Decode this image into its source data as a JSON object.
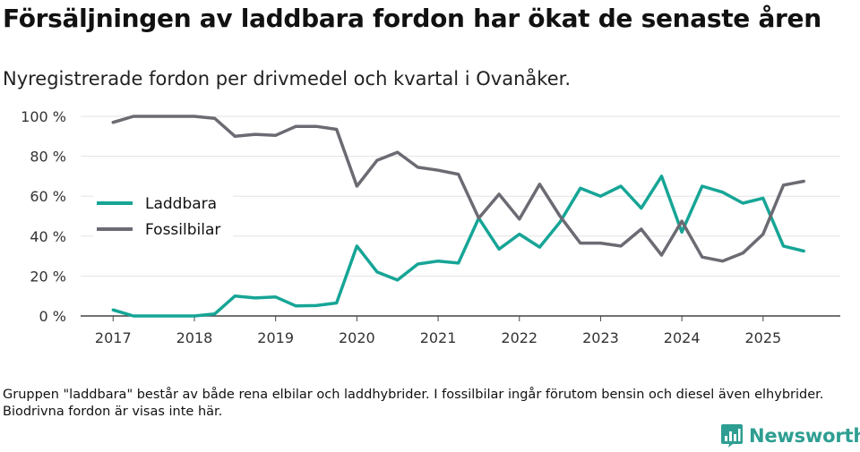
{
  "title": "Försäljningen av laddbara fordon har ökat de senaste åren",
  "subtitle": "Nyregistrerade fordon per drivmedel och kvartal i Ovanåker.",
  "footnote": "Gruppen \"laddbara\" består av både rena elbilar och laddhybrider. I fossilbilar ingår förutom bensin och diesel även elhybrider. Biodrivna fordon är visas inte här.",
  "brand": {
    "name": "Newsworthy",
    "color": "#2e9e92",
    "icon": "bar-chart-icon"
  },
  "chart_data": {
    "type": "line",
    "x": [
      2017.0,
      2017.25,
      2017.5,
      2017.75,
      2018.0,
      2018.25,
      2018.5,
      2018.75,
      2019.0,
      2019.25,
      2019.5,
      2019.75,
      2020.0,
      2020.25,
      2020.5,
      2020.75,
      2021.0,
      2021.25,
      2021.5,
      2021.75,
      2022.0,
      2022.25,
      2022.5,
      2022.75,
      2023.0,
      2023.25,
      2023.5,
      2023.75,
      2024.0,
      2024.25,
      2024.5,
      2024.75,
      2025.0,
      2025.25,
      2025.5
    ],
    "series": [
      {
        "name": "Laddbara",
        "color": "#16a596",
        "values": [
          3,
          0,
          0,
          0,
          0,
          1,
          10,
          9,
          9.5,
          5,
          5.2,
          6.5,
          35,
          22,
          18,
          26,
          27.5,
          26.5,
          49,
          33.5,
          41,
          34.5,
          47,
          64,
          60,
          65,
          54,
          70,
          42,
          65,
          62,
          56.5,
          59,
          35,
          32.5
        ]
      },
      {
        "name": "Fossilbilar",
        "color": "#6c6a72",
        "values": [
          97,
          100,
          100,
          100,
          100,
          99,
          90,
          91,
          90.5,
          95,
          95,
          93.5,
          65,
          78,
          82,
          74.5,
          73,
          71,
          49,
          61,
          48.5,
          66,
          50,
          36.5,
          36.5,
          35,
          43.5,
          30.5,
          47.5,
          29.5,
          27.5,
          31.5,
          41,
          65.5,
          67.5
        ]
      }
    ],
    "x_ticks": [
      "2017",
      "2018",
      "2019",
      "2020",
      "2021",
      "2022",
      "2023",
      "2024",
      "2025"
    ],
    "y_ticks": [
      "0 %",
      "20 %",
      "40 %",
      "60 %",
      "80 %",
      "100 %"
    ],
    "y_tick_values": [
      0,
      20,
      40,
      60,
      80,
      100
    ],
    "ylim": [
      0,
      100
    ],
    "xlim": [
      2016.6,
      2025.95
    ],
    "xlabel": "",
    "ylabel": "",
    "grid": true,
    "legend": "left"
  }
}
